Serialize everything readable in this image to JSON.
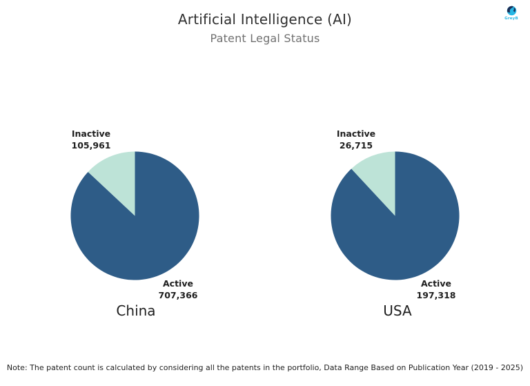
{
  "header": {
    "title": "Artificial Intelligence (AI)",
    "subtitle": "Patent Legal Status"
  },
  "logo": {
    "brand": "GreyB"
  },
  "note": "Note: The patent count is calculated by considering all the patents in the portfolio, Data Range Based on Publication Year (2019 - 2025)",
  "colors": {
    "active": "#2e5c87",
    "inactive": "#bde3d7",
    "title": "#2f2f2f",
    "subtitle": "#707070",
    "logo_cyan": "#25b7e5",
    "logo_navy": "#1c2d55"
  },
  "chart_data": [
    {
      "type": "pie",
      "title": "China",
      "labels": [
        "Active",
        "Inactive"
      ],
      "values": [
        707366,
        105961
      ],
      "value_labels": [
        "707,366",
        "105,961"
      ],
      "colors": [
        "#2e5c87",
        "#bde3d7"
      ],
      "start_angle_deg": 0,
      "direction": "clockwise",
      "legend": "off"
    },
    {
      "type": "pie",
      "title": "USA",
      "labels": [
        "Active",
        "Inactive"
      ],
      "values": [
        197318,
        26715
      ],
      "value_labels": [
        "197,318",
        "26,715"
      ],
      "colors": [
        "#2e5c87",
        "#bde3d7"
      ],
      "start_angle_deg": 0,
      "direction": "clockwise",
      "legend": "off"
    }
  ]
}
